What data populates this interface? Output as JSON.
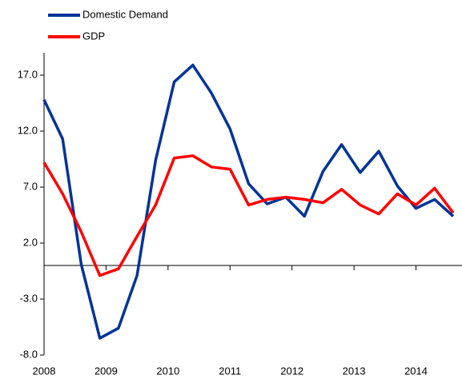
{
  "chart_data": {
    "type": "line",
    "x": [
      2008,
      2008.3,
      2008.6,
      2008.9,
      2009.2,
      2009.5,
      2009.8,
      2010.1,
      2010.4,
      2010.7,
      2011.0,
      2011.3,
      2011.6,
      2011.9,
      2012.2,
      2012.5,
      2012.8,
      2013.1,
      2013.4,
      2013.7,
      2014.0,
      2014.3,
      2014.6
    ],
    "series": [
      {
        "name": "Domestic Demand",
        "color": "#003399",
        "values": [
          14.8,
          11.3,
          0.1,
          -6.5,
          -5.6,
          -0.9,
          9.4,
          16.4,
          17.9,
          15.4,
          12.2,
          7.3,
          5.5,
          6.1,
          4.4,
          8.4,
          10.8,
          8.3,
          10.2,
          7.1,
          5.1,
          5.9,
          4.4
        ]
      },
      {
        "name": "GDP",
        "color": "#ff0000",
        "values": [
          9.2,
          6.4,
          3.0,
          -0.9,
          -0.3,
          2.6,
          5.4,
          9.6,
          9.8,
          8.8,
          8.6,
          5.4,
          5.9,
          6.1,
          5.9,
          5.6,
          6.8,
          5.4,
          4.6,
          6.4,
          5.4,
          6.9,
          4.7
        ]
      }
    ],
    "xlim": [
      2008,
      2014.6
    ],
    "xticks": [
      2008,
      2009,
      2010,
      2011,
      2012,
      2013,
      2014
    ],
    "ylim": [
      -8,
      19
    ],
    "yticks": [
      {
        "value": -8,
        "label": "-8.0"
      },
      {
        "value": -3,
        "label": "-3.0"
      },
      {
        "value": 2,
        "label": "2.0"
      },
      {
        "value": 7,
        "label": "7.0"
      },
      {
        "value": 12,
        "label": "12.0"
      },
      {
        "value": 17,
        "label": "17.0"
      }
    ],
    "legend": "top-left"
  }
}
